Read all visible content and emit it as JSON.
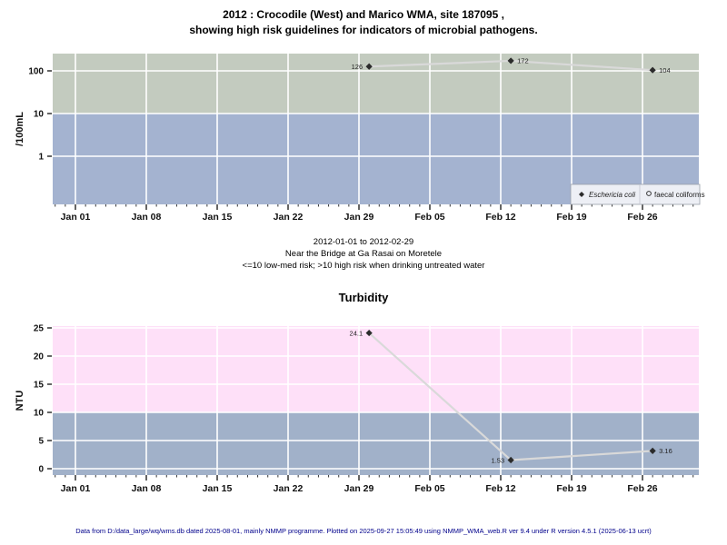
{
  "page": {
    "title_line1": "2012 : Crocodile (West) and Marico WMA, site 187095 ,",
    "title_line2": "showing high risk guidelines for indicators of microbial pathogens.",
    "subtitle_lines": [
      "2012-01-01 to 2012-02-29",
      "Near the Bridge at Ga Rasai on Moretele",
      "<=10 low-med risk; >10 high risk when drinking untreated water"
    ],
    "chart2_title": "Turbidity",
    "footer": "Data from D:/data_large/wq/wms.db dated 2025-08-01, mainly NMMP programme. Plotted on 2025-09-27 15:05:49 using NMMP_WMA_web.R ver 9.4 under R version 4.5.1 (2025-06-13 ucrt)"
  },
  "chart_data": [
    {
      "type": "line",
      "title": "",
      "ylabel": "/100mL",
      "yscale": "log",
      "ylim": [
        0.07,
        250
      ],
      "yticks": [
        1,
        10,
        100
      ],
      "ytick_labels": [
        "1",
        "10",
        "100"
      ],
      "x_range": "2012-01-01 to 2012-02-29",
      "x_tick_labels": [
        "Jan 01",
        "Jan 08",
        "Jan 15",
        "Jan 22",
        "Jan 29",
        "Feb 05",
        "Feb 12",
        "Feb 19",
        "Feb 26"
      ],
      "x_tick_days": [
        0,
        7,
        14,
        21,
        28,
        35,
        42,
        49,
        56
      ],
      "risk_boundary": 10,
      "risk_note": ">10 high risk when drinking untreated water",
      "colors": {
        "high_zone": "#c3cbbf",
        "low_zone": "#a4b3d0",
        "line": "#d9d9d9",
        "marker": "#2b2b2b"
      },
      "grid": true,
      "legend_position": "bottom-right",
      "legend": [
        {
          "label": "Eschericia coli",
          "marker": "filled-diamond",
          "italic": true
        },
        {
          "label": "faecal coliforms",
          "marker": "open-circle",
          "italic": false
        }
      ],
      "series": [
        {
          "name": "Eschericia coli",
          "marker": "filled-diamond",
          "x_days": [
            29,
            43,
            57
          ],
          "x_dates": [
            "2012-01-30",
            "2012-02-13",
            "2012-02-27"
          ],
          "values": [
            126,
            172,
            104
          ],
          "point_labels": [
            "126",
            "172",
            "104"
          ],
          "label_side": [
            "left",
            "right",
            "right"
          ]
        },
        {
          "name": "faecal coliforms",
          "marker": "open-circle",
          "x_days": [],
          "x_dates": [],
          "values": [],
          "point_labels": [],
          "label_side": []
        }
      ]
    },
    {
      "type": "line",
      "title": "Turbidity",
      "ylabel": "NTU",
      "yscale": "linear",
      "ylim": [
        0,
        25
      ],
      "yticks": [
        0,
        5,
        10,
        15,
        20,
        25
      ],
      "ytick_labels": [
        "0",
        "5",
        "10",
        "15",
        "20",
        "25"
      ],
      "x_range": "2012-01-01 to 2012-02-29",
      "x_tick_labels": [
        "Jan 01",
        "Jan 08",
        "Jan 15",
        "Jan 22",
        "Jan 29",
        "Feb 05",
        "Feb 12",
        "Feb 19",
        "Feb 26"
      ],
      "x_tick_days": [
        0,
        7,
        14,
        21,
        28,
        35,
        42,
        49,
        56
      ],
      "risk_boundary": 10,
      "colors": {
        "high_zone": "#fee0f8",
        "low_zone": "#a1b1c9",
        "line": "#d9d9d9",
        "marker": "#2b2b2b"
      },
      "grid": true,
      "legend": [],
      "series": [
        {
          "name": "Turbidity",
          "marker": "filled-diamond",
          "x_days": [
            29,
            43,
            57
          ],
          "x_dates": [
            "2012-01-30",
            "2012-02-13",
            "2012-02-27"
          ],
          "values": [
            24.1,
            1.53,
            3.16
          ],
          "point_labels": [
            "24.1",
            "1.53",
            "3.16"
          ],
          "label_side": [
            "left",
            "left",
            "right"
          ]
        }
      ]
    }
  ]
}
